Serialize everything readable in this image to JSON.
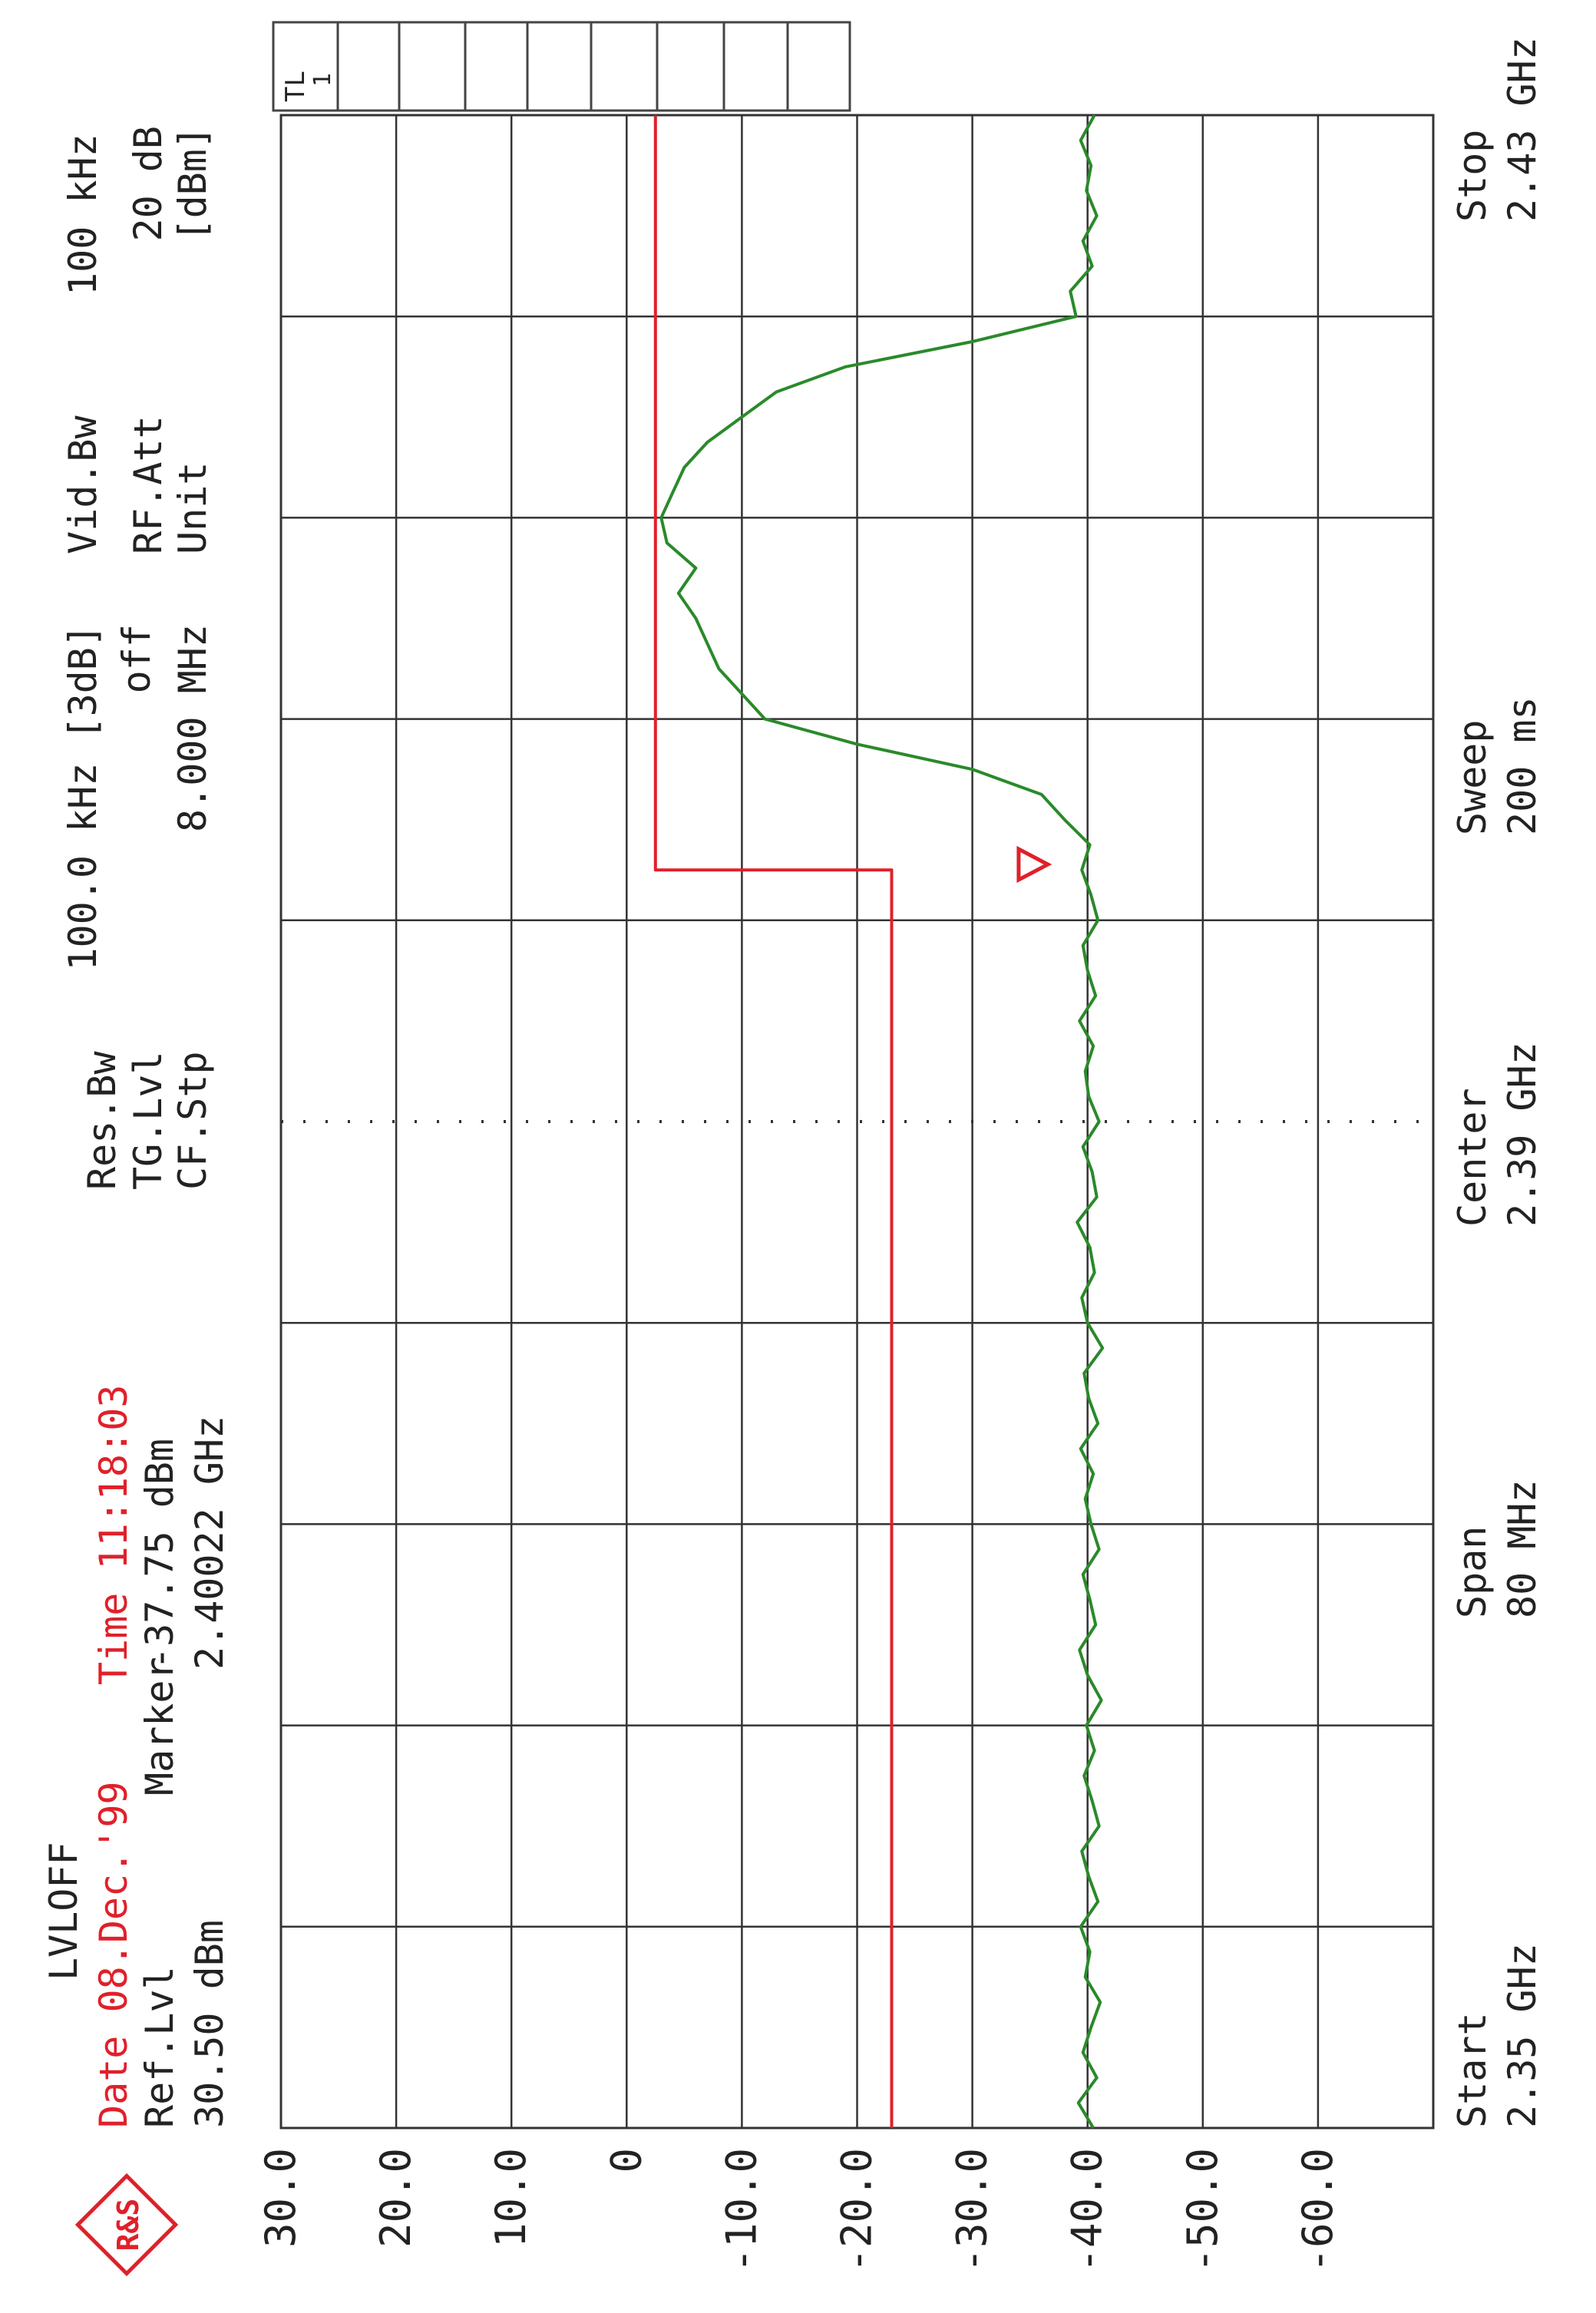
{
  "chart_data": {
    "type": "line",
    "header": {
      "mode": "LVLOFF",
      "date": "Date 08.Dec.'99",
      "time": "Time 11:18:03",
      "ref_label": "Ref.Lvl",
      "ref_value": "30.50 dBm",
      "marker_label": "Marker",
      "marker_level": "-37.75 dBm",
      "marker_freq": "2.40022 GHz",
      "res_bw_label": "Res.Bw",
      "tg_lvl_label": "TG.Lvl",
      "cf_stp_label": "CF.Stp",
      "res_bw_value": "100.0 kHz [3dB]",
      "tg_lvl_value": "off",
      "cf_stp_value": "8.000 MHz",
      "vid_bw_label": "Vid.Bw",
      "rf_att_label": "RF.Att",
      "unit_label": "Unit",
      "vid_bw_value": "100 kHz",
      "rf_att_value": "20 dB",
      "unit_value": "[dBm]",
      "tl_box": "TL",
      "tl_num": "1"
    },
    "footer": {
      "start_label": "Start",
      "start_value": "2.35 GHz",
      "span_label": "Span",
      "span_value": "80 MHz",
      "center_label": "Center",
      "center_value": "2.39 GHz",
      "sweep_label": "Sweep",
      "sweep_value": "200 ms",
      "stop_label": "Stop",
      "stop_value": "2.43 GHz"
    },
    "logo": "R&S",
    "xlim": [
      2.35,
      2.43
    ],
    "ylim": [
      -70,
      30
    ],
    "yticks": [
      {
        "value": 30,
        "label": "30.0"
      },
      {
        "value": 20,
        "label": "20.0"
      },
      {
        "value": 10,
        "label": "10.0"
      },
      0,
      {
        "value": -10,
        "label": "-10.0"
      },
      {
        "value": -20,
        "label": "-20.0"
      },
      {
        "value": -30,
        "label": "-30.0"
      },
      {
        "value": -40,
        "label": "-40.0"
      },
      {
        "value": -50,
        "label": "-50.0"
      },
      {
        "value": -60,
        "label": "-60.0"
      }
    ],
    "grid": true,
    "x": [
      2.35,
      2.351,
      2.352,
      2.353,
      2.354,
      2.355,
      2.356,
      2.357,
      2.358,
      2.359,
      2.36,
      2.361,
      2.362,
      2.363,
      2.364,
      2.365,
      2.366,
      2.367,
      2.368,
      2.369,
      2.37,
      2.371,
      2.372,
      2.373,
      2.374,
      2.375,
      2.376,
      2.377,
      2.378,
      2.379,
      2.38,
      2.381,
      2.382,
      2.383,
      2.384,
      2.385,
      2.386,
      2.387,
      2.388,
      2.389,
      2.39,
      2.391,
      2.392,
      2.393,
      2.394,
      2.395,
      2.396,
      2.397,
      2.398,
      2.399,
      2.4,
      2.401,
      2.402,
      2.403,
      2.404,
      2.405,
      2.406,
      2.407,
      2.408,
      2.409,
      2.41,
      2.411,
      2.412,
      2.413,
      2.414,
      2.415,
      2.416,
      2.417,
      2.418,
      2.419,
      2.42,
      2.421,
      2.422,
      2.423,
      2.424,
      2.425,
      2.426,
      2.427,
      2.428,
      2.429,
      2.43
    ],
    "series": [
      {
        "color": "#2a8a2a",
        "values": [
          -40.5,
          -39.2,
          -40.8,
          -39.6,
          -40.3,
          -41.1,
          -39.8,
          -40.2,
          -39.4,
          -40.9,
          -40.1,
          -39.5,
          -41.0,
          -40.4,
          -39.7,
          -40.6,
          -39.9,
          -41.2,
          -40.0,
          -39.3,
          -40.7,
          -40.2,
          -39.6,
          -41.0,
          -40.3,
          -39.8,
          -40.5,
          -39.4,
          -40.9,
          -40.1,
          -39.7,
          -41.3,
          -40.0,
          -39.5,
          -40.6,
          -40.2,
          -39.1,
          -40.8,
          -40.4,
          -39.6,
          -41.0,
          -40.1,
          -39.8,
          -40.5,
          -39.3,
          -40.7,
          -40.0,
          -39.6,
          -40.9,
          -40.3,
          -39.5,
          -40.2,
          -38,
          -36,
          -30,
          -20,
          -12,
          -10,
          -8,
          -7,
          -6,
          -4.5,
          -6,
          -3.5,
          -3,
          -4,
          -5,
          -7,
          -10,
          -13,
          -19,
          -30,
          -39,
          -38.5,
          -40.4,
          -39.6,
          -40.8,
          -39.9,
          -40.3,
          -39.4,
          -40.6
        ]
      },
      {
        "color": "#e0202a",
        "x": [
          2.35,
          2.4,
          2.4,
          2.43
        ],
        "values": [
          -23,
          -23,
          -2.5,
          -2.5
        ]
      }
    ],
    "marker": {
      "x": 2.40022,
      "y": -37.75,
      "color": "#e0202a"
    }
  }
}
